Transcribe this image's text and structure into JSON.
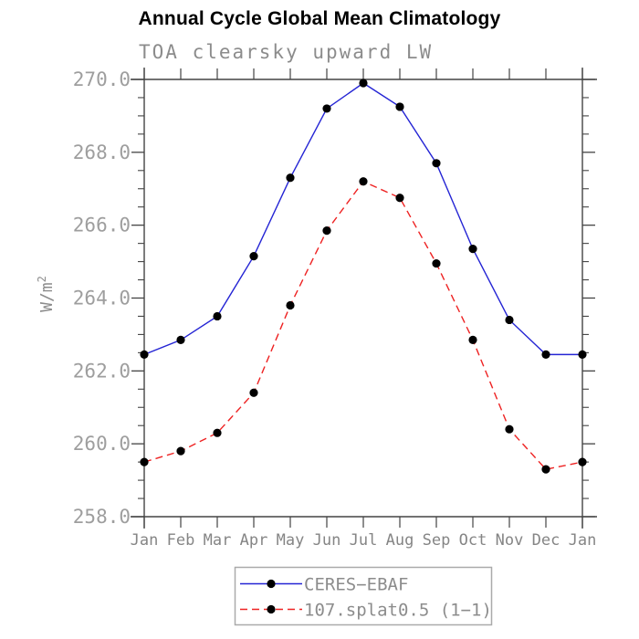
{
  "title": "Annual Cycle Global Mean Climatology",
  "subtitle": "TOA clearsky upward LW",
  "chart_data": {
    "type": "line",
    "categories": [
      "Jan",
      "Feb",
      "Mar",
      "Apr",
      "May",
      "Jun",
      "Jul",
      "Aug",
      "Sep",
      "Oct",
      "Nov",
      "Dec",
      "Jan"
    ],
    "series": [
      {
        "name": "CERES−EBAF",
        "color": "#2424d4",
        "line_style": "solid",
        "marker": "filled-circle",
        "marker_color": "#000000",
        "values": [
          262.45,
          262.85,
          263.5,
          265.15,
          267.3,
          269.2,
          269.9,
          269.25,
          267.7,
          265.35,
          263.4,
          262.45,
          262.45
        ]
      },
      {
        "name": "107.splat0.5 (1−1)",
        "color": "#ee2222",
        "line_style": "dashed",
        "marker": "filled-circle",
        "marker_color": "#000000",
        "values": [
          259.5,
          259.8,
          260.3,
          261.4,
          263.8,
          265.85,
          267.2,
          266.75,
          264.95,
          262.85,
          260.4,
          259.3,
          259.5
        ]
      }
    ],
    "ylabel": "W/m²",
    "ylim": [
      258.0,
      270.0
    ],
    "ytick_step": 2.0,
    "ytick_minor_step": 0.5,
    "ytick_labels": [
      "258.0",
      "260.0",
      "262.0",
      "264.0",
      "266.0",
      "268.0",
      "270.0"
    ],
    "grid": "off",
    "legend_position": "bottom-center"
  },
  "colors": {
    "axis": "#444444",
    "ytick_label": "#9e9e9e",
    "xtick_label": "#858585",
    "ylabel_gray": "#8c8c8c",
    "legend_text": "#8c8c8c",
    "legend_border": "#aaaaaa"
  }
}
